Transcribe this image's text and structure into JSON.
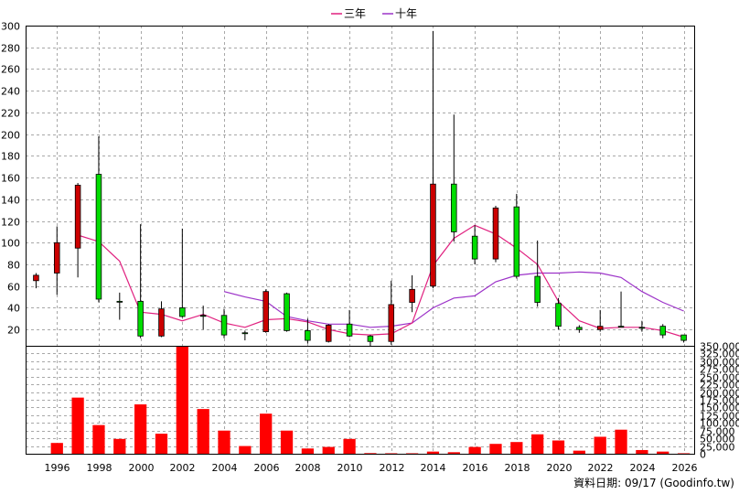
{
  "chart_data": {
    "type": "candlestick-with-volume",
    "legend": [
      {
        "name": "三年",
        "color": "#e0207f"
      },
      {
        "name": "十年",
        "color": "#9c32c8"
      }
    ],
    "price_axis": {
      "ylim": [
        5,
        300
      ],
      "ticks": [
        20,
        40,
        60,
        80,
        100,
        120,
        140,
        160,
        180,
        200,
        220,
        240,
        260,
        280,
        300
      ],
      "grid": true
    },
    "volume_axis": {
      "ylim": [
        0,
        350000
      ],
      "ticks": [
        0,
        25000,
        50000,
        75000,
        100000,
        125000,
        150000,
        175000,
        200000,
        225000,
        250000,
        275000,
        300000,
        325000,
        350000
      ],
      "tick_labels": [
        "0",
        "25,000",
        "50,000",
        "75,000",
        "100,000",
        "125,000",
        "150,000",
        "175,000",
        "200,000",
        "225,000",
        "250,000",
        "275,000",
        "300,000",
        "325,000",
        "350,000"
      ]
    },
    "x_axis": {
      "xlim": [
        1994.5,
        2026.5
      ],
      "tick_labels": [
        "1996",
        "1998",
        "2000",
        "2002",
        "2004",
        "2006",
        "2008",
        "2010",
        "2012",
        "2014",
        "2016",
        "2018",
        "2020",
        "2022",
        "2024",
        "2026"
      ]
    },
    "up_color": "#00dd00",
    "down_color": "#cc0000",
    "candles": [
      {
        "year": 1995,
        "open": 70,
        "high": 72,
        "low": 58,
        "close": 65
      },
      {
        "year": 1996,
        "open": 100,
        "high": 115,
        "low": 52,
        "close": 72
      },
      {
        "year": 1997,
        "open": 153,
        "high": 155,
        "low": 68,
        "close": 95
      },
      {
        "year": 1998,
        "open": 48,
        "high": 198,
        "low": 45,
        "close": 163
      },
      {
        "year": 1999,
        "open": 46,
        "high": 54,
        "low": 29,
        "close": 46
      },
      {
        "year": 2000,
        "open": 14,
        "high": 117,
        "low": 12,
        "close": 46
      },
      {
        "year": 2001,
        "open": 39,
        "high": 46,
        "low": 13,
        "close": 14
      },
      {
        "year": 2002,
        "open": 32,
        "high": 113,
        "low": 31,
        "close": 40
      },
      {
        "year": 2003,
        "open": 33,
        "high": 42,
        "low": 20,
        "close": 33
      },
      {
        "year": 2004,
        "open": 15,
        "high": 39,
        "low": 12,
        "close": 33
      },
      {
        "year": 2005,
        "open": 17,
        "high": 19,
        "low": 10,
        "close": 17
      },
      {
        "year": 2006,
        "open": 55,
        "high": 57,
        "low": 17,
        "close": 18
      },
      {
        "year": 2007,
        "open": 19,
        "high": 54,
        "low": 18,
        "close": 53
      },
      {
        "year": 2008,
        "open": 10,
        "high": 30,
        "low": 7,
        "close": 19
      },
      {
        "year": 2009,
        "open": 24,
        "high": 25,
        "low": 8,
        "close": 9
      },
      {
        "year": 2010,
        "open": 14,
        "high": 38,
        "low": 13,
        "close": 25
      },
      {
        "year": 2011,
        "open": 9,
        "high": 15,
        "low": 5,
        "close": 14
      },
      {
        "year": 2012,
        "open": 43,
        "high": 65,
        "low": 6,
        "close": 9
      },
      {
        "year": 2013,
        "open": 57,
        "high": 70,
        "low": 36,
        "close": 45
      },
      {
        "year": 2014,
        "open": 154,
        "high": 295,
        "low": 58,
        "close": 60
      },
      {
        "year": 2015,
        "open": 110,
        "high": 218,
        "low": 101,
        "close": 154
      },
      {
        "year": 2016,
        "open": 85,
        "high": 116,
        "low": 80,
        "close": 106
      },
      {
        "year": 2017,
        "open": 132,
        "high": 134,
        "low": 82,
        "close": 85
      },
      {
        "year": 2018,
        "open": 69,
        "high": 145,
        "low": 67,
        "close": 133
      },
      {
        "year": 2019,
        "open": 45,
        "high": 102,
        "low": 41,
        "close": 69
      },
      {
        "year": 2020,
        "open": 23,
        "high": 49,
        "low": 20,
        "close": 44
      },
      {
        "year": 2021,
        "open": 20,
        "high": 24,
        "low": 17,
        "close": 22
      },
      {
        "year": 2022,
        "open": 23,
        "high": 38,
        "low": 18,
        "close": 20
      },
      {
        "year": 2023,
        "open": 23,
        "high": 55,
        "low": 22,
        "close": 23
      },
      {
        "year": 2024,
        "open": 22,
        "high": 28,
        "low": 18,
        "close": 22
      },
      {
        "year": 2025,
        "open": 15,
        "high": 25,
        "low": 12,
        "close": 23
      },
      {
        "year": 2026,
        "open": 10,
        "high": 14,
        "low": 8,
        "close": 15
      }
    ],
    "ma_3y": [
      {
        "year": 1997,
        "value": 107
      },
      {
        "year": 1998,
        "value": 101
      },
      {
        "year": 1999,
        "value": 83
      },
      {
        "year": 2000,
        "value": 36
      },
      {
        "year": 2001,
        "value": 34
      },
      {
        "year": 2002,
        "value": 28
      },
      {
        "year": 2003,
        "value": 34
      },
      {
        "year": 2004,
        "value": 26
      },
      {
        "year": 2005,
        "value": 22
      },
      {
        "year": 2006,
        "value": 29
      },
      {
        "year": 2007,
        "value": 30
      },
      {
        "year": 2008,
        "value": 27
      },
      {
        "year": 2009,
        "value": 20
      },
      {
        "year": 2010,
        "value": 16
      },
      {
        "year": 2011,
        "value": 15
      },
      {
        "year": 2012,
        "value": 16
      },
      {
        "year": 2013,
        "value": 26
      },
      {
        "year": 2014,
        "value": 79
      },
      {
        "year": 2015,
        "value": 104
      },
      {
        "year": 2016,
        "value": 116
      },
      {
        "year": 2017,
        "value": 108
      },
      {
        "year": 2018,
        "value": 95
      },
      {
        "year": 2019,
        "value": 80
      },
      {
        "year": 2020,
        "value": 46
      },
      {
        "year": 2021,
        "value": 28
      },
      {
        "year": 2022,
        "value": 21
      },
      {
        "year": 2023,
        "value": 22
      },
      {
        "year": 2024,
        "value": 22
      },
      {
        "year": 2025,
        "value": 19
      },
      {
        "year": 2026,
        "value": 13
      }
    ],
    "ma_10y": [
      {
        "year": 2004,
        "value": 55
      },
      {
        "year": 2005,
        "value": 50
      },
      {
        "year": 2006,
        "value": 46
      },
      {
        "year": 2007,
        "value": 32
      },
      {
        "year": 2008,
        "value": 28
      },
      {
        "year": 2009,
        "value": 25
      },
      {
        "year": 2010,
        "value": 25
      },
      {
        "year": 2011,
        "value": 22
      },
      {
        "year": 2012,
        "value": 23
      },
      {
        "year": 2013,
        "value": 26
      },
      {
        "year": 2014,
        "value": 40
      },
      {
        "year": 2015,
        "value": 49
      },
      {
        "year": 2016,
        "value": 51
      },
      {
        "year": 2017,
        "value": 64
      },
      {
        "year": 2018,
        "value": 70
      },
      {
        "year": 2019,
        "value": 72
      },
      {
        "year": 2020,
        "value": 72
      },
      {
        "year": 2021,
        "value": 73
      },
      {
        "year": 2022,
        "value": 72
      },
      {
        "year": 2023,
        "value": 68
      },
      {
        "year": 2024,
        "value": 55
      },
      {
        "year": 2025,
        "value": 45
      },
      {
        "year": 2026,
        "value": 37
      }
    ],
    "volume_color": "#ff0000",
    "volumes": [
      {
        "year": 1995,
        "value": 0
      },
      {
        "year": 1996,
        "value": 35000
      },
      {
        "year": 1997,
        "value": 182000
      },
      {
        "year": 1998,
        "value": 93000
      },
      {
        "year": 1999,
        "value": 48000
      },
      {
        "year": 2000,
        "value": 160000
      },
      {
        "year": 2001,
        "value": 65000
      },
      {
        "year": 2002,
        "value": 350000
      },
      {
        "year": 2003,
        "value": 145000
      },
      {
        "year": 2004,
        "value": 75000
      },
      {
        "year": 2005,
        "value": 25000
      },
      {
        "year": 2006,
        "value": 130000
      },
      {
        "year": 2007,
        "value": 75000
      },
      {
        "year": 2008,
        "value": 17000
      },
      {
        "year": 2009,
        "value": 22000
      },
      {
        "year": 2010,
        "value": 48000
      },
      {
        "year": 2011,
        "value": 2000
      },
      {
        "year": 2012,
        "value": 1500
      },
      {
        "year": 2013,
        "value": 1500
      },
      {
        "year": 2014,
        "value": 7000
      },
      {
        "year": 2015,
        "value": 5000
      },
      {
        "year": 2016,
        "value": 22000
      },
      {
        "year": 2017,
        "value": 32000
      },
      {
        "year": 2018,
        "value": 38000
      },
      {
        "year": 2019,
        "value": 63000
      },
      {
        "year": 2020,
        "value": 43000
      },
      {
        "year": 2021,
        "value": 10000
      },
      {
        "year": 2022,
        "value": 55000
      },
      {
        "year": 2023,
        "value": 78000
      },
      {
        "year": 2024,
        "value": 12000
      },
      {
        "year": 2025,
        "value": 7000
      },
      {
        "year": 2026,
        "value": 1500
      }
    ]
  },
  "source_note": "資料日期: 09/17 (Goodinfo.tw)"
}
